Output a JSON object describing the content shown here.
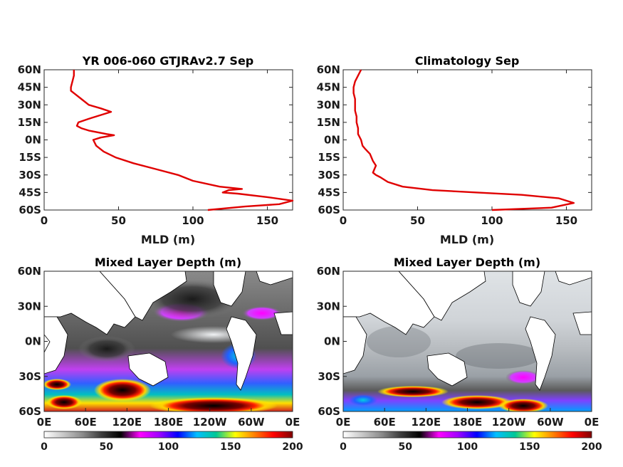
{
  "colors": {
    "profile_line": "#e00000",
    "land": "#ffffff",
    "coast": "#000000"
  },
  "colorbar_stops": [
    "#ffffff",
    "#c8c8c8",
    "#8c8c8c",
    "#3c3c3c",
    "#000000",
    "#ff00ff",
    "#a000ff",
    "#0000ff",
    "#00bfff",
    "#00c896",
    "#ffff00",
    "#ff8000",
    "#ff0000",
    "#800000"
  ],
  "chart_data": [
    {
      "type": "line",
      "title": "YR 006-060 GTJRAv2.7 Sep",
      "xlabel": "MLD (m)",
      "ylabel": "",
      "xlim": [
        0,
        167
      ],
      "ylim": [
        -60,
        60
      ],
      "xticks": [
        "0",
        "50",
        "100",
        "150"
      ],
      "xtick_values": [
        0,
        50,
        100,
        150
      ],
      "yticks": [
        "60N",
        "45N",
        "30N",
        "15N",
        "0N",
        "15S",
        "30S",
        "45S",
        "60S"
      ],
      "ytick_values": [
        60,
        45,
        30,
        15,
        0,
        -15,
        -30,
        -45,
        -60
      ],
      "series": [
        {
          "x": [
            110,
            135,
            158,
            167,
            150,
            130,
            120,
            124,
            133,
            118,
            100,
            90,
            75,
            60,
            48,
            40,
            35,
            33,
            38,
            47,
            42,
            30,
            25,
            22,
            23,
            30,
            45,
            38,
            30,
            25,
            20,
            18,
            18,
            19,
            20,
            20
          ],
          "y": [
            -60,
            -57,
            -55,
            -52,
            -49,
            -46,
            -45,
            -43,
            -42,
            -40,
            -35,
            -30,
            -25,
            -20,
            -15,
            -10,
            -5,
            0,
            2,
            4,
            5,
            8,
            10,
            12,
            15,
            18,
            24,
            27,
            30,
            35,
            40,
            42,
            45,
            50,
            55,
            60
          ]
        }
      ]
    },
    {
      "type": "line",
      "title": "Climatology Sep",
      "xlabel": "MLD (m)",
      "ylabel": "",
      "xlim": [
        0,
        167
      ],
      "ylim": [
        -60,
        60
      ],
      "xticks": [
        "0",
        "50",
        "100",
        "150"
      ],
      "xtick_values": [
        0,
        50,
        100,
        150
      ],
      "yticks": [
        "60N",
        "45N",
        "30N",
        "15N",
        "0N",
        "15S",
        "30S",
        "45S",
        "60S"
      ],
      "ytick_values": [
        60,
        45,
        30,
        15,
        0,
        -15,
        -30,
        -45,
        -60
      ],
      "series": [
        {
          "x": [
            100,
            140,
            155,
            145,
            120,
            90,
            60,
            40,
            30,
            25,
            22,
            20,
            21,
            22,
            20,
            18,
            15,
            13,
            12,
            10,
            10,
            9,
            9,
            8,
            8,
            8,
            7,
            7,
            8,
            10,
            12
          ],
          "y": [
            -60,
            -58,
            -54,
            -50,
            -47,
            -45,
            -43,
            -40,
            -36,
            -32,
            -30,
            -28,
            -25,
            -22,
            -18,
            -12,
            -8,
            -5,
            0,
            5,
            10,
            15,
            20,
            25,
            30,
            35,
            40,
            45,
            50,
            55,
            60
          ]
        }
      ]
    },
    {
      "type": "heatmap",
      "title": "Mixed Layer Depth (m)",
      "xticks": [
        "0E",
        "60E",
        "120E",
        "180E",
        "120W",
        "60W",
        "0E"
      ],
      "yticks": [
        "60N",
        "30N",
        "0N",
        "30S",
        "60S"
      ],
      "colorbar_ticks": [
        "0",
        "50",
        "100",
        "150",
        "200"
      ],
      "colorbar_range": [
        0,
        200
      ]
    },
    {
      "type": "heatmap",
      "title": "Mixed Layer Depth (m)",
      "xticks": [
        "0E",
        "60E",
        "120E",
        "180E",
        "120W",
        "60W",
        "0E"
      ],
      "yticks": [
        "60N",
        "30N",
        "0N",
        "30S",
        "60S"
      ],
      "colorbar_ticks": [
        "0",
        "50",
        "100",
        "150",
        "200"
      ],
      "colorbar_range": [
        0,
        200
      ]
    }
  ]
}
